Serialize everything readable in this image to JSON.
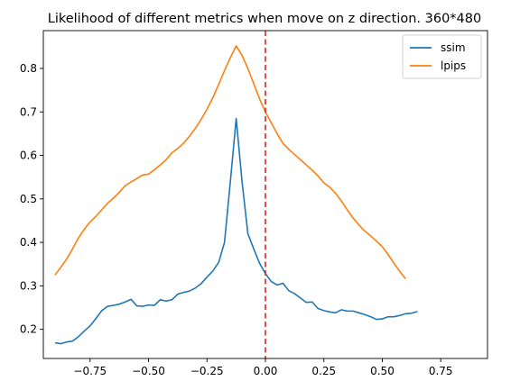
{
  "chart_data": {
    "type": "line",
    "title": "Likelihood of different metrics when move on z direction. 360*480",
    "xlabel": "",
    "ylabel": "",
    "xlim": [
      -0.95,
      0.95
    ],
    "ylim": [
      0.133,
      0.887
    ],
    "xticks": [
      -0.75,
      -0.5,
      -0.25,
      0.0,
      0.25,
      0.5,
      0.75
    ],
    "xtick_labels": [
      "−0.75",
      "−0.50",
      "−0.25",
      "0.00",
      "0.25",
      "0.50",
      "0.75"
    ],
    "yticks": [
      0.2,
      0.3,
      0.4,
      0.5,
      0.6,
      0.7,
      0.8
    ],
    "ytick_labels": [
      "0.2",
      "0.3",
      "0.4",
      "0.5",
      "0.6",
      "0.7",
      "0.8"
    ],
    "grid": false,
    "legend_position": "top-right",
    "vline": {
      "x": 0.0,
      "color": "#d62728",
      "style": "dashed"
    },
    "series": [
      {
        "name": "ssim",
        "color": "#1f77b4",
        "points": [
          [
            -0.9,
            0.169
          ],
          [
            -0.875,
            0.167
          ],
          [
            -0.85,
            0.171
          ],
          [
            -0.825,
            0.173
          ],
          [
            -0.8,
            0.183
          ],
          [
            -0.775,
            0.196
          ],
          [
            -0.75,
            0.208
          ],
          [
            -0.725,
            0.225
          ],
          [
            -0.7,
            0.243
          ],
          [
            -0.675,
            0.253
          ],
          [
            -0.65,
            0.255
          ],
          [
            -0.625,
            0.258
          ],
          [
            -0.6,
            0.263
          ],
          [
            -0.575,
            0.269
          ],
          [
            -0.55,
            0.254
          ],
          [
            -0.525,
            0.253
          ],
          [
            -0.5,
            0.256
          ],
          [
            -0.475,
            0.255
          ],
          [
            -0.45,
            0.268
          ],
          [
            -0.425,
            0.265
          ],
          [
            -0.4,
            0.268
          ],
          [
            -0.375,
            0.281
          ],
          [
            -0.35,
            0.285
          ],
          [
            -0.325,
            0.288
          ],
          [
            -0.3,
            0.295
          ],
          [
            -0.275,
            0.305
          ],
          [
            -0.25,
            0.32
          ],
          [
            -0.225,
            0.334
          ],
          [
            -0.2,
            0.354
          ],
          [
            -0.175,
            0.4
          ],
          [
            -0.15,
            0.54
          ],
          [
            -0.125,
            0.685
          ],
          [
            -0.1,
            0.54
          ],
          [
            -0.075,
            0.42
          ],
          [
            -0.05,
            0.385
          ],
          [
            -0.025,
            0.352
          ],
          [
            0.0,
            0.328
          ],
          [
            0.025,
            0.31
          ],
          [
            0.05,
            0.302
          ],
          [
            0.075,
            0.306
          ],
          [
            0.1,
            0.289
          ],
          [
            0.125,
            0.282
          ],
          [
            0.15,
            0.272
          ],
          [
            0.175,
            0.262
          ],
          [
            0.2,
            0.263
          ],
          [
            0.225,
            0.248
          ],
          [
            0.25,
            0.243
          ],
          [
            0.275,
            0.24
          ],
          [
            0.3,
            0.238
          ],
          [
            0.325,
            0.245
          ],
          [
            0.35,
            0.242
          ],
          [
            0.375,
            0.242
          ],
          [
            0.4,
            0.238
          ],
          [
            0.425,
            0.234
          ],
          [
            0.45,
            0.229
          ],
          [
            0.475,
            0.223
          ],
          [
            0.5,
            0.224
          ],
          [
            0.525,
            0.229
          ],
          [
            0.55,
            0.229
          ],
          [
            0.575,
            0.232
          ],
          [
            0.6,
            0.236
          ],
          [
            0.625,
            0.237
          ],
          [
            0.65,
            0.241
          ]
        ]
      },
      {
        "name": "lpips",
        "color": "#ff7f0e",
        "points": [
          [
            -0.9,
            0.325
          ],
          [
            -0.875,
            0.343
          ],
          [
            -0.85,
            0.362
          ],
          [
            -0.825,
            0.385
          ],
          [
            -0.8,
            0.41
          ],
          [
            -0.775,
            0.43
          ],
          [
            -0.75,
            0.447
          ],
          [
            -0.725,
            0.46
          ],
          [
            -0.7,
            0.475
          ],
          [
            -0.675,
            0.49
          ],
          [
            -0.65,
            0.502
          ],
          [
            -0.625,
            0.515
          ],
          [
            -0.6,
            0.53
          ],
          [
            -0.575,
            0.539
          ],
          [
            -0.55,
            0.547
          ],
          [
            -0.525,
            0.555
          ],
          [
            -0.5,
            0.557
          ],
          [
            -0.475,
            0.567
          ],
          [
            -0.45,
            0.578
          ],
          [
            -0.425,
            0.59
          ],
          [
            -0.4,
            0.606
          ],
          [
            -0.375,
            0.616
          ],
          [
            -0.35,
            0.628
          ],
          [
            -0.325,
            0.644
          ],
          [
            -0.3,
            0.662
          ],
          [
            -0.275,
            0.683
          ],
          [
            -0.25,
            0.706
          ],
          [
            -0.225,
            0.733
          ],
          [
            -0.2,
            0.763
          ],
          [
            -0.175,
            0.795
          ],
          [
            -0.15,
            0.825
          ],
          [
            -0.125,
            0.852
          ],
          [
            -0.1,
            0.83
          ],
          [
            -0.075,
            0.8
          ],
          [
            -0.05,
            0.765
          ],
          [
            -0.025,
            0.73
          ],
          [
            0.0,
            0.7
          ],
          [
            0.025,
            0.675
          ],
          [
            0.05,
            0.65
          ],
          [
            0.075,
            0.628
          ],
          [
            0.1,
            0.614
          ],
          [
            0.125,
            0.602
          ],
          [
            0.15,
            0.59
          ],
          [
            0.175,
            0.578
          ],
          [
            0.2,
            0.566
          ],
          [
            0.225,
            0.553
          ],
          [
            0.25,
            0.537
          ],
          [
            0.275,
            0.527
          ],
          [
            0.3,
            0.513
          ],
          [
            0.325,
            0.495
          ],
          [
            0.35,
            0.475
          ],
          [
            0.375,
            0.456
          ],
          [
            0.4,
            0.44
          ],
          [
            0.425,
            0.426
          ],
          [
            0.45,
            0.415
          ],
          [
            0.475,
            0.403
          ],
          [
            0.5,
            0.39
          ],
          [
            0.525,
            0.372
          ],
          [
            0.55,
            0.352
          ],
          [
            0.575,
            0.333
          ],
          [
            0.6,
            0.316
          ]
        ]
      }
    ]
  }
}
